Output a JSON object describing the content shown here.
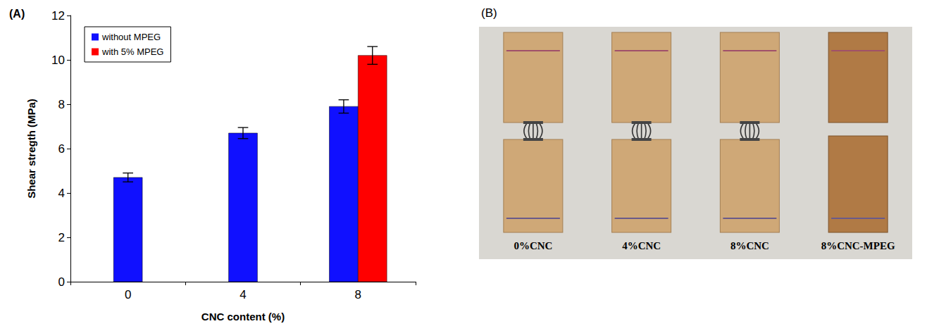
{
  "chart_data": {
    "type": "bar",
    "title": "(A)",
    "x_label": "CNC content (%)",
    "y_label": "Shear stregth (MPa)",
    "categories": [
      "0",
      "4",
      "8"
    ],
    "series": [
      {
        "name": "without MPEG",
        "color": "#1010ff",
        "values": [
          4.7,
          6.7,
          7.9
        ],
        "errors": [
          0.2,
          0.25,
          0.3
        ]
      },
      {
        "name": "with 5% MPEG",
        "color": "#ff0000",
        "values": [
          null,
          null,
          10.2
        ],
        "errors": [
          null,
          null,
          0.4
        ]
      }
    ],
    "ylim": [
      0,
      12
    ],
    "yticks": [
      0,
      2,
      4,
      6,
      8,
      10,
      12
    ],
    "grid": false,
    "legend": "top-left"
  },
  "photo": {
    "letter": "(B)",
    "labels": [
      "0%CNC",
      "4%CNC",
      "8%CNC",
      "8%CNC-MPEG"
    ]
  }
}
